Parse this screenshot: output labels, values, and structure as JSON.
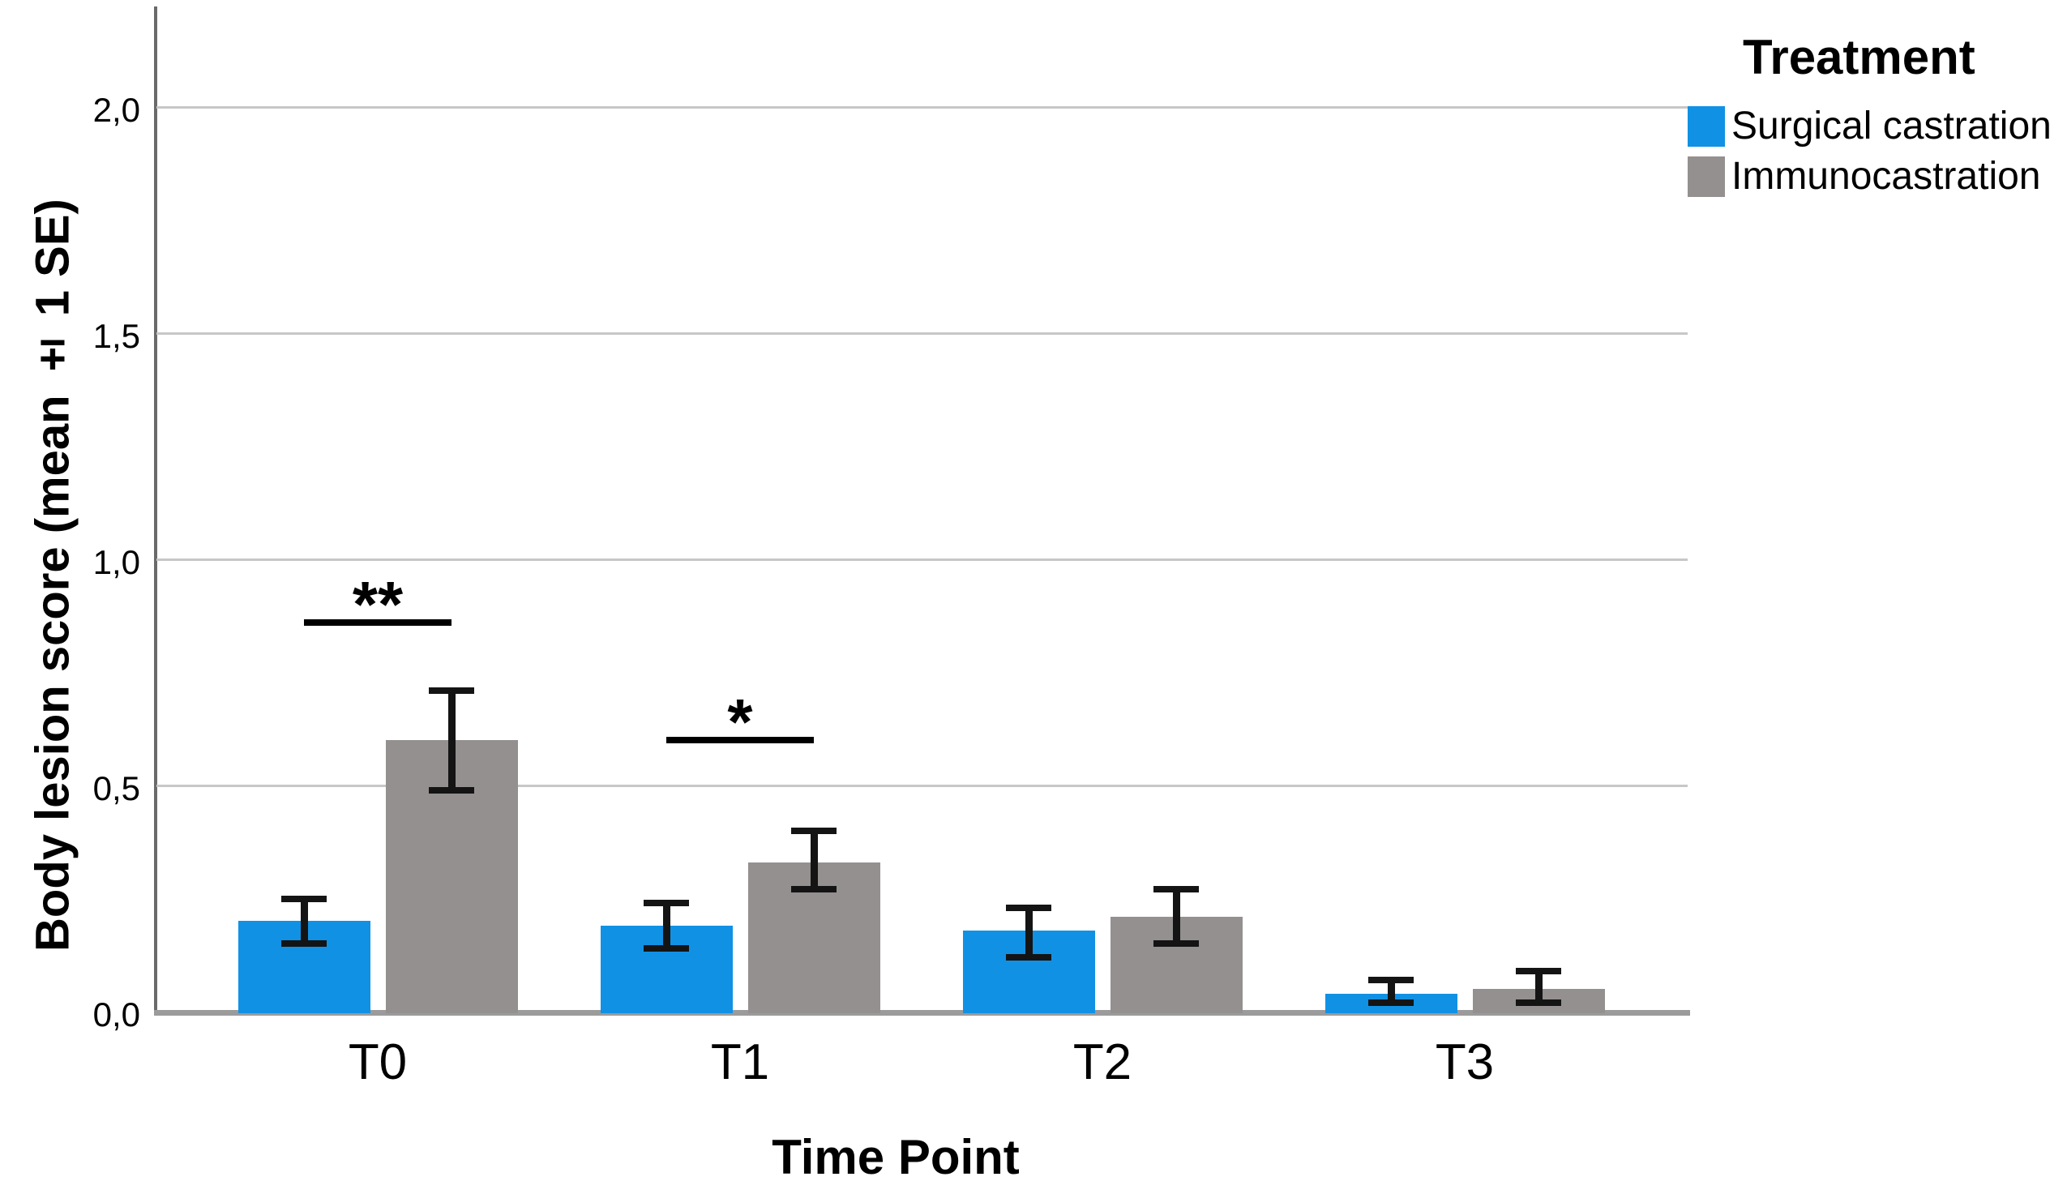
{
  "chart_data": {
    "type": "bar",
    "title": "",
    "xlabel": "Time Point",
    "ylabel": "Body lesion score (mean ± 1 SE)",
    "categories": [
      "T0",
      "T1",
      "T2",
      "T3"
    ],
    "series": [
      {
        "name": "Surgical castration",
        "color": "#1191E4",
        "values": [
          0.2,
          0.19,
          0.18,
          0.04
        ],
        "err_low": [
          0.15,
          0.14,
          0.12,
          0.02
        ],
        "err_high": [
          0.25,
          0.24,
          0.23,
          0.07
        ]
      },
      {
        "name": "Immunocastration",
        "color": "#949090",
        "values": [
          0.6,
          0.33,
          0.21,
          0.05
        ],
        "err_low": [
          0.49,
          0.27,
          0.15,
          0.02
        ],
        "err_high": [
          0.71,
          0.4,
          0.27,
          0.09
        ]
      }
    ],
    "y_ticks": [
      {
        "label": "0,0",
        "value": 0
      },
      {
        "label": "0,5",
        "value": 0.5
      },
      {
        "label": "1,0",
        "value": 1.0
      },
      {
        "label": "1,5",
        "value": 1.5
      },
      {
        "label": "2,0",
        "value": 2.0
      }
    ],
    "ylim": [
      0,
      2.22
    ],
    "grid": "horizontal",
    "error_bars": "±1 SE",
    "legend": {
      "title": "Treatment",
      "position": "top-right"
    },
    "annotations": [
      {
        "category": "T0",
        "label": "**",
        "line_value": 0.86
      },
      {
        "category": "T1",
        "label": "*",
        "line_value": 0.6
      }
    ]
  }
}
